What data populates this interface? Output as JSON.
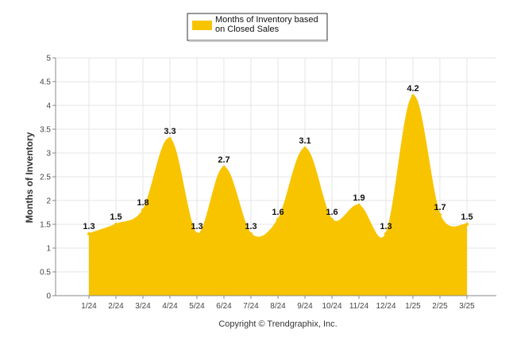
{
  "chart_data": {
    "type": "area",
    "title": "",
    "xlabel": "",
    "ylabel": "Months of Inventory",
    "categories": [
      "1/24",
      "2/24",
      "3/24",
      "4/24",
      "5/24",
      "6/24",
      "7/24",
      "8/24",
      "9/24",
      "10/24",
      "11/24",
      "12/24",
      "1/25",
      "2/25",
      "3/25"
    ],
    "series": [
      {
        "name": "Months of Inventory based on Closed Sales",
        "values": [
          1.3,
          1.5,
          1.8,
          3.3,
          1.3,
          2.7,
          1.3,
          1.6,
          3.1,
          1.6,
          1.9,
          1.3,
          4.2,
          1.7,
          1.5
        ],
        "color": "#f8c400"
      }
    ],
    "ylim": [
      0,
      5
    ],
    "yticks": [
      "0",
      "0.5",
      "1",
      "1.5",
      "2",
      "2.5",
      "3",
      "3.5",
      "4",
      "4.5",
      "5"
    ],
    "grid": true,
    "legend": "top-center",
    "data_labels": true
  },
  "legend": {
    "line1": "Months of Inventory based",
    "line2": "on Closed Sales"
  },
  "footer": {
    "copyright": "Copyright © Trendgraphix, Inc."
  },
  "colors": {
    "area": "#f8c400",
    "grid": "#e6e6e6",
    "axis": "#888888"
  }
}
